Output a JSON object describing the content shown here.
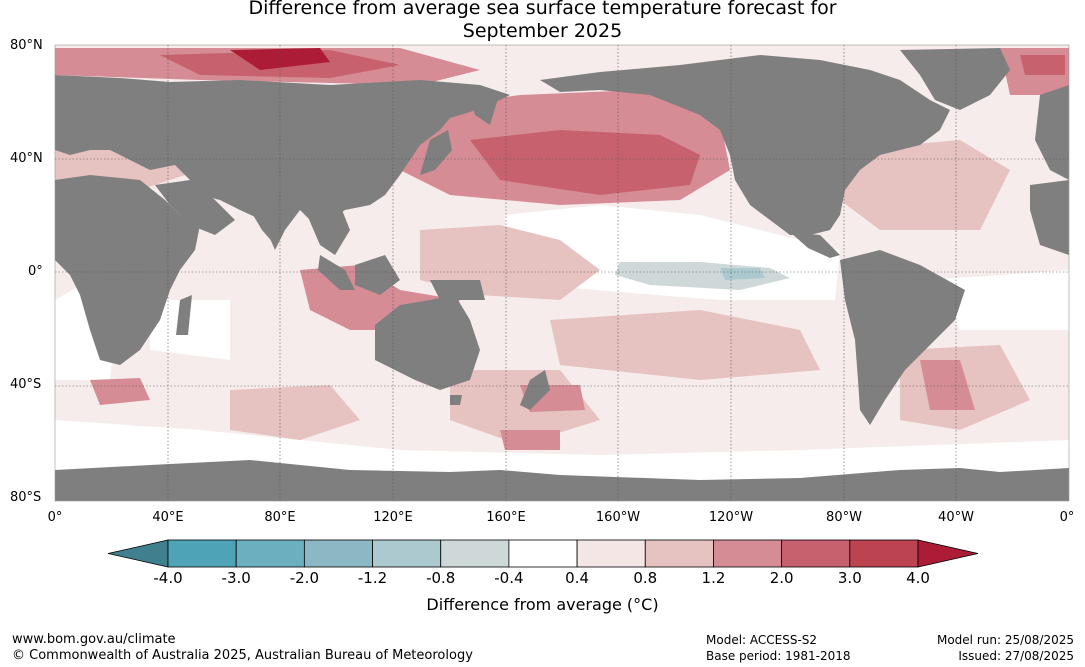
{
  "title": {
    "line1": "Difference from average sea surface temperature forecast for",
    "line2": "September 2025"
  },
  "lat_labels": [
    "80°N",
    "40°N",
    "0°",
    "40°S",
    "80°S"
  ],
  "lon_labels": [
    "0°",
    "40°E",
    "80°E",
    "120°E",
    "160°E",
    "160°W",
    "120°W",
    "80°W",
    "40°W",
    "0°"
  ],
  "colorbar": {
    "ticks": [
      "-4.0",
      "-3.0",
      "-2.0",
      "-1.2",
      "-0.8",
      "-0.4",
      "0.4",
      "0.8",
      "1.2",
      "2.0",
      "3.0",
      "4.0"
    ],
    "colors": [
      "#3f7f8e",
      "#4fa3b6",
      "#6cafbf",
      "#8cb8c5",
      "#acc9d0",
      "#cfd8d9",
      "#ffffff",
      "#f3e6e5",
      "#e6c2c0",
      "#d58c95",
      "#c7616e",
      "#bb4352",
      "#ac1c36"
    ],
    "label": "Difference from average (°C)"
  },
  "footer": {
    "url": "www.bom.gov.au/climate",
    "copyright": "© Commonwealth of Australia 2025, Australian Bureau of Meteorology",
    "model": "Model: ACCESS-S2",
    "base_period": "Base period: 1981-2018",
    "model_run": "Model run: 25/08/2025",
    "issued": "Issued: 27/08/2025"
  },
  "map_colors": {
    "land": "#7f7f7f",
    "ocean_neutral": "#ffffff"
  }
}
